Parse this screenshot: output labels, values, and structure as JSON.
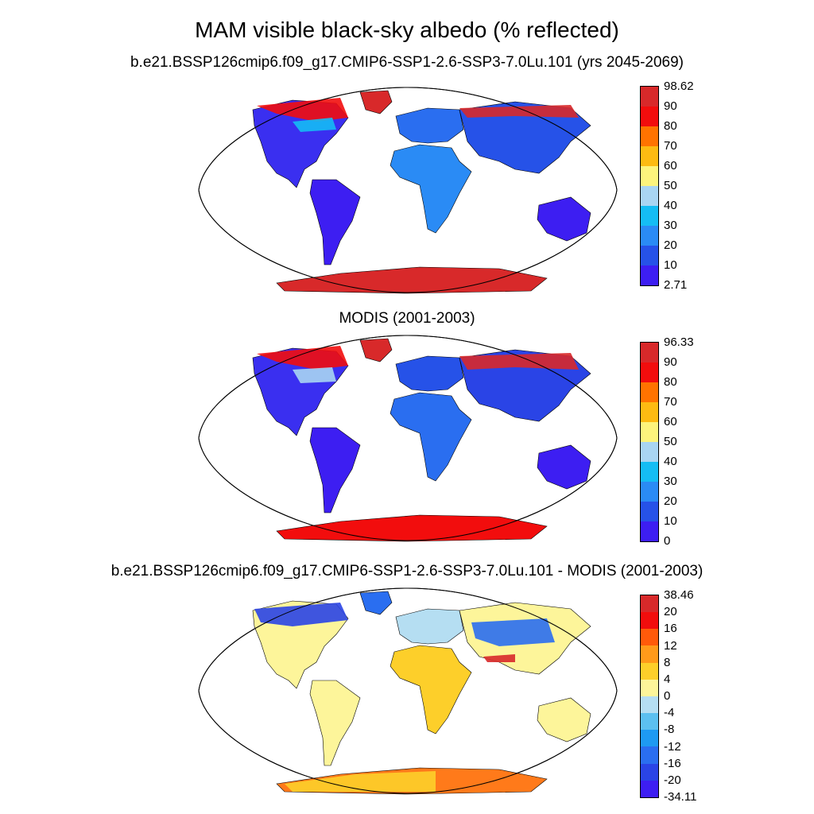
{
  "title": "MAM visible black-sky albedo (% reflected)",
  "panels": [
    {
      "subtitle": "b.e21.BSSP126cmip6.f09_g17.CMIP6-SSP1-2.6-SSP3-7.0Lu.101 (yrs 2045-2069)",
      "colorbar_labels": [
        "98.62",
        "90",
        "80",
        "70",
        "60",
        "50",
        "40",
        "30",
        "20",
        "10",
        "2.71"
      ],
      "colors": [
        "#d8292a",
        "#f20d0d",
        "#ff7300",
        "#fdbb12",
        "#fdf47c",
        "#a9d5f2",
        "#15bdf4",
        "#2a8bf5",
        "#2652e8",
        "#3d1ef2"
      ]
    },
    {
      "subtitle": "MODIS (2001-2003)",
      "colorbar_labels": [
        "96.33",
        "90",
        "80",
        "70",
        "60",
        "50",
        "40",
        "30",
        "20",
        "10",
        "0"
      ],
      "colors": [
        "#d8292a",
        "#f20d0d",
        "#ff7300",
        "#fdbb12",
        "#fdf47c",
        "#a9d5f2",
        "#15bdf4",
        "#2a8bf5",
        "#2652e8",
        "#3d1ef2"
      ]
    },
    {
      "subtitle": "b.e21.BSSP126cmip6.f09_g17.CMIP6-SSP1-2.6-SSP3-7.0Lu.101 - MODIS (2001-2003)",
      "colorbar_labels": [
        "38.46",
        "20",
        "16",
        "12",
        "8",
        "4",
        "0",
        "-4",
        "-8",
        "-12",
        "-16",
        "-20",
        "-34.11"
      ],
      "colors": [
        "#d8292a",
        "#f20d0d",
        "#ff5a0a",
        "#ff9a1a",
        "#fdcf2a",
        "#fdf59a",
        "#b5def2",
        "#5cc0f0",
        "#1e9af2",
        "#2a6ef0",
        "#2a44e6",
        "#3d1ef2"
      ]
    }
  ]
}
